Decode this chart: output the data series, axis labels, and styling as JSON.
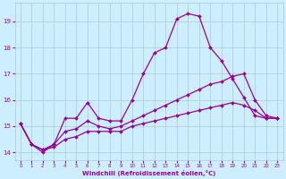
{
  "x_ticks": [
    0,
    1,
    2,
    3,
    4,
    5,
    6,
    7,
    8,
    9,
    10,
    11,
    12,
    13,
    14,
    15,
    16,
    17,
    18,
    19,
    20,
    21,
    22,
    23
  ],
  "line1": [
    15.1,
    14.3,
    14.0,
    14.3,
    15.3,
    15.3,
    15.9,
    15.3,
    15.2,
    15.2,
    16.0,
    17.0,
    17.8,
    18.0,
    19.1,
    19.3,
    19.2,
    18.0,
    17.5,
    16.8,
    16.1,
    15.4,
    15.3,
    15.3
  ],
  "line2": [
    15.1,
    14.3,
    14.1,
    14.3,
    14.8,
    14.9,
    15.2,
    15.0,
    14.9,
    15.0,
    15.2,
    15.4,
    15.6,
    15.8,
    16.0,
    16.2,
    16.4,
    16.6,
    16.7,
    16.9,
    17.0,
    16.0,
    15.4,
    15.3
  ],
  "line3": [
    15.1,
    14.3,
    14.1,
    14.2,
    14.5,
    14.6,
    14.8,
    14.8,
    14.8,
    14.8,
    15.0,
    15.1,
    15.2,
    15.3,
    15.4,
    15.5,
    15.6,
    15.7,
    15.8,
    15.9,
    15.8,
    15.6,
    15.3,
    15.3
  ],
  "color": "#990099",
  "bg_color": "#cceeff",
  "grid_color": "#aacccc",
  "xlabel": "Windchill (Refroidissement éolien,°C)",
  "ylim": [
    13.7,
    19.7
  ],
  "xlim": [
    -0.5,
    23.5
  ],
  "yticks": [
    14,
    15,
    16,
    17,
    18,
    19
  ],
  "title": ""
}
